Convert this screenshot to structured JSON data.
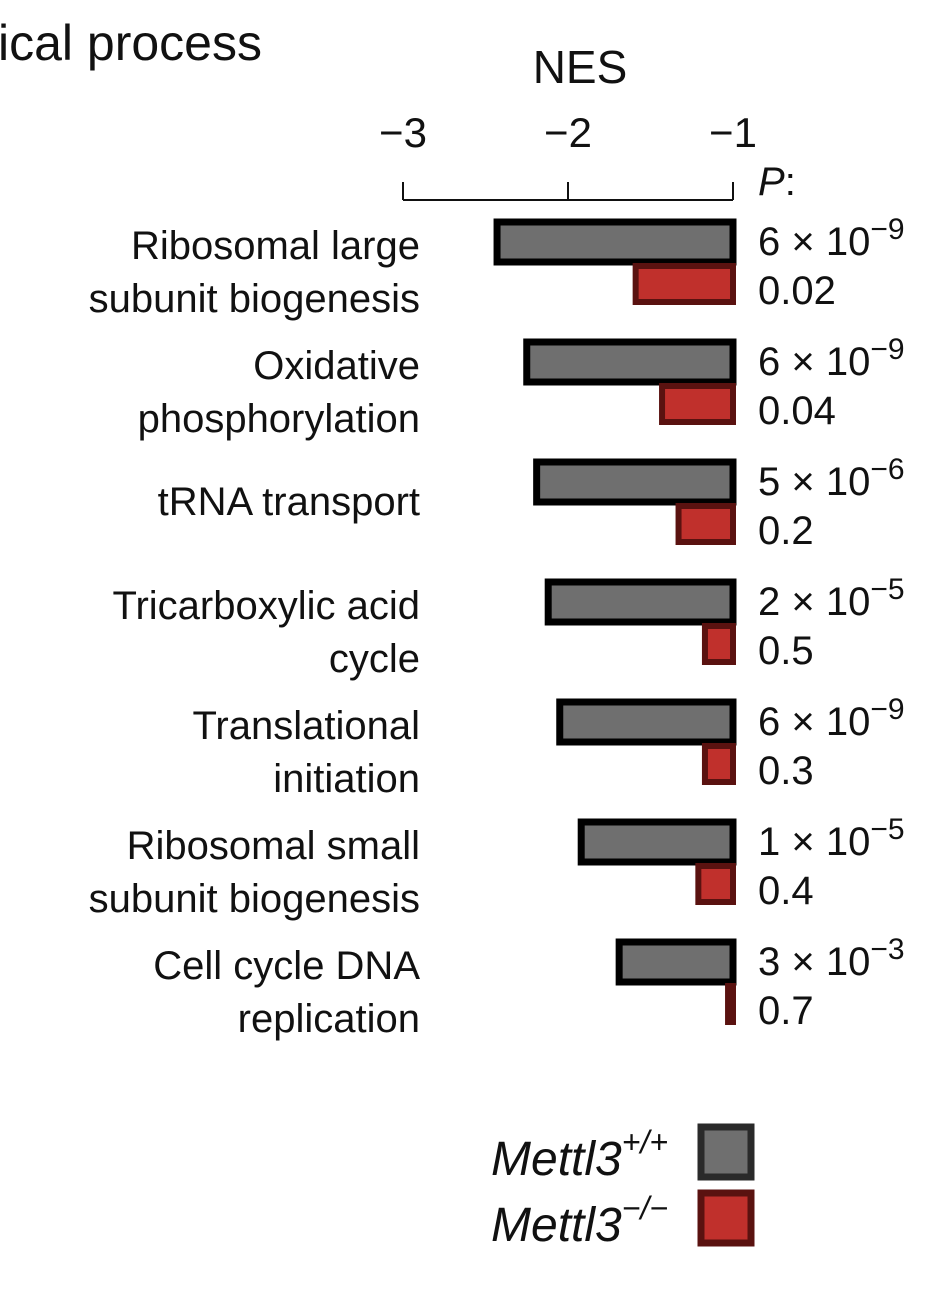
{
  "heading": "ical process",
  "p_header": "P",
  "p_header_suffix": ":",
  "colors": {
    "wildtype_fill": "#6f6f6f",
    "wildtype_border": "#000000",
    "knockout_fill": "#c0302c",
    "knockout_border": "#5a1210"
  },
  "legend": {
    "entries": [
      {
        "base": "Mettl3",
        "superscript": "+/+"
      },
      {
        "base": "Mettl3",
        "superscript": "−/−"
      }
    ]
  },
  "chart_data": {
    "type": "bar",
    "orientation": "horizontal",
    "xlabel": "NES",
    "xlim": [
      -3,
      -1
    ],
    "xticks": [
      -3,
      -2,
      -1
    ],
    "xtick_labels": [
      "−3",
      "−2",
      "−1"
    ],
    "axis_position": "top",
    "grid": false,
    "legend_placement": "bottom-right",
    "categories": [
      [
        "Ribosomal large",
        "subunit biogenesis"
      ],
      [
        "Oxidative",
        "phosphorylation"
      ],
      [
        "tRNA transport"
      ],
      [
        "Tricarboxylic acid",
        "cycle"
      ],
      [
        "Translational",
        "initiation"
      ],
      [
        "Ribosomal small",
        "subunit biogenesis"
      ],
      [
        "Cell cycle DNA",
        "replication"
      ]
    ],
    "series": [
      {
        "name": "Mettl3+/+",
        "values": [
          -2.43,
          -2.25,
          -2.19,
          -2.12,
          -2.05,
          -1.92,
          -1.69
        ],
        "p_values": [
          {
            "mantissa": "6",
            "exponent": "−9"
          },
          {
            "mantissa": "6",
            "exponent": "−9"
          },
          {
            "mantissa": "5",
            "exponent": "−6"
          },
          {
            "mantissa": "2",
            "exponent": "−5"
          },
          {
            "mantissa": "6",
            "exponent": "−9"
          },
          {
            "mantissa": "1",
            "exponent": "−5"
          },
          {
            "mantissa": "3",
            "exponent": "−3"
          }
        ]
      },
      {
        "name": "Mettl3−/−",
        "values": [
          -1.59,
          -1.43,
          -1.33,
          -1.17,
          -1.17,
          -1.21,
          -1.03
        ],
        "p_values": [
          "0.02",
          "0.04",
          "0.2",
          "0.5",
          "0.3",
          "0.4",
          "0.7"
        ]
      }
    ]
  }
}
